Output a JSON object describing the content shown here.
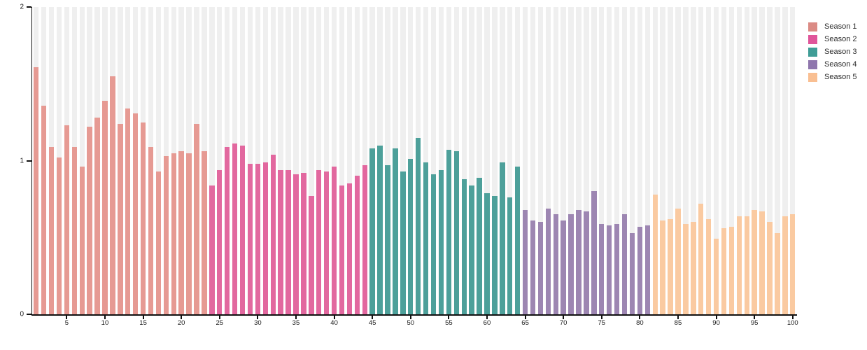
{
  "chart_data": {
    "type": "bar",
    "title": "",
    "xlabel": "",
    "ylabel": "",
    "ylim": [
      0,
      2
    ],
    "yticks": [
      0,
      1,
      2
    ],
    "xticks": [
      5,
      10,
      15,
      20,
      25,
      30,
      35,
      40,
      45,
      50,
      55,
      60,
      65,
      70,
      75,
      80,
      85,
      90,
      95,
      100
    ],
    "x_range": [
      1,
      100
    ],
    "grid": "off",
    "background_band_color": "#efefef",
    "axis_color": "#111111",
    "legend_position": "top-right",
    "series": [
      {
        "name": "Season 1",
        "color": "#e69a93",
        "legend_color": "#db8b85",
        "start_x": 1,
        "values": [
          1.61,
          1.36,
          1.09,
          1.02,
          1.23,
          1.09,
          0.96,
          1.22,
          1.28,
          1.39,
          1.55,
          1.24,
          1.34,
          1.31,
          1.25,
          1.09,
          0.93,
          1.03,
          1.05,
          1.06,
          1.05,
          1.24,
          1.06
        ]
      },
      {
        "name": "Season 2",
        "color": "#e2689f",
        "legend_color": "#e0559a",
        "start_x": 24,
        "values": [
          0.84,
          0.94,
          1.09,
          1.11,
          1.1,
          0.98,
          0.98,
          0.99,
          1.04,
          0.94,
          0.94,
          0.91,
          0.92,
          0.77,
          0.94,
          0.93,
          0.96,
          0.84,
          0.85,
          0.9,
          0.97
        ]
      },
      {
        "name": "Season 3",
        "color": "#4da09a",
        "legend_color": "#3f9d96",
        "start_x": 45,
        "values": [
          1.08,
          1.1,
          0.97,
          1.08,
          0.93,
          1.01,
          1.15,
          0.99,
          0.91,
          0.94,
          1.07,
          1.06,
          0.88,
          0.84,
          0.89,
          0.79,
          0.77,
          0.99,
          0.76,
          0.96
        ]
      },
      {
        "name": "Season 4",
        "color": "#9d86b2",
        "legend_color": "#8f76ad",
        "start_x": 65,
        "values": [
          0.68,
          0.61,
          0.6,
          0.69,
          0.65,
          0.61,
          0.65,
          0.68,
          0.67,
          0.8,
          0.59,
          0.58,
          0.59,
          0.65,
          0.53,
          0.57,
          0.58
        ]
      },
      {
        "name": "Season 5",
        "color": "#facaa1",
        "legend_color": "#f9bf92",
        "start_x": 82,
        "values": [
          0.78,
          0.61,
          0.62,
          0.69,
          0.59,
          0.6,
          0.72,
          0.62,
          0.49,
          0.56,
          0.57,
          0.64,
          0.64,
          0.68,
          0.67,
          0.6,
          0.53,
          0.64,
          0.65
        ]
      }
    ]
  },
  "legend": {
    "items": [
      {
        "label": "Season 1"
      },
      {
        "label": "Season 2"
      },
      {
        "label": "Season 3"
      },
      {
        "label": "Season 4"
      },
      {
        "label": "Season 5"
      }
    ]
  }
}
